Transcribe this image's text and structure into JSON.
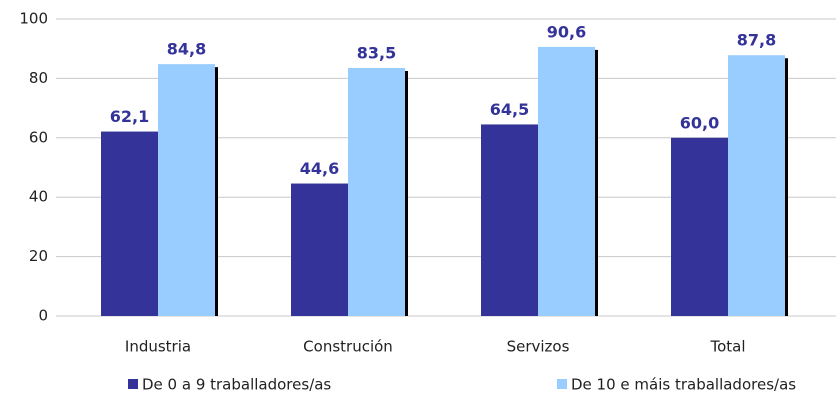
{
  "chart_data": {
    "type": "bar",
    "categories": [
      "Industria",
      "Construción",
      "Servizos",
      "Total"
    ],
    "series": [
      {
        "name": "De 0 a 9 traballadores/as",
        "color": "#333399",
        "values": [
          62.1,
          44.6,
          64.5,
          60.0
        ],
        "value_labels": [
          "62,1",
          "44,6",
          "64,5",
          "60,0"
        ]
      },
      {
        "name": "De 10 e máis traballadores/as",
        "color": "#99ccff",
        "values": [
          84.8,
          83.5,
          90.6,
          87.8
        ],
        "value_labels": [
          "84,8",
          "83,5",
          "90,6",
          "87,8"
        ]
      }
    ],
    "ylim": [
      0,
      100
    ],
    "yticks": [
      0,
      20,
      40,
      60,
      80,
      100
    ],
    "grid": true
  }
}
